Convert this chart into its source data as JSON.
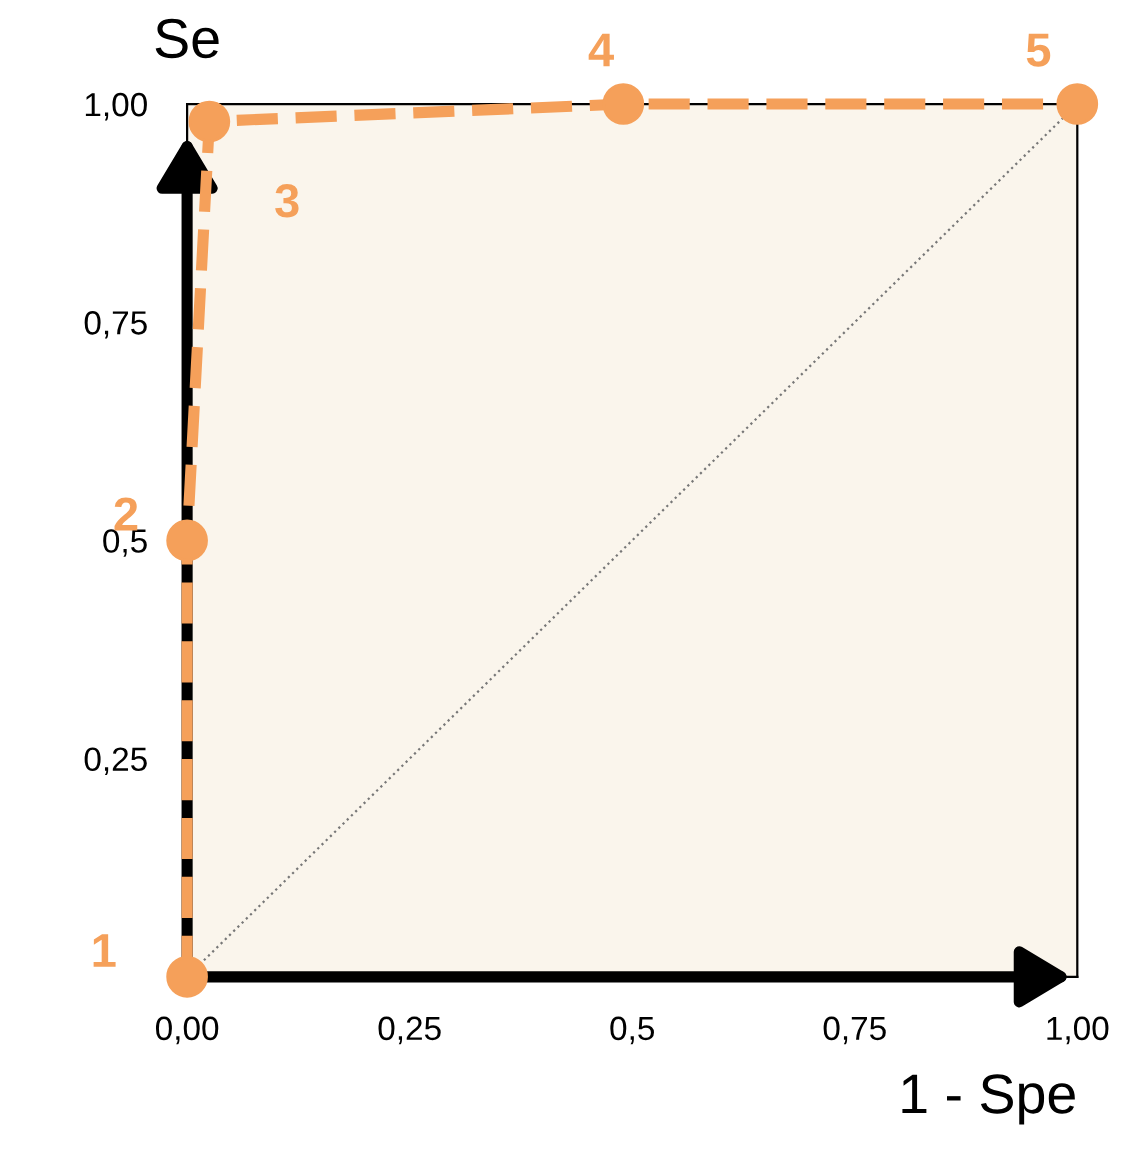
{
  "chart_data": {
    "type": "line",
    "xlabel": "1 - Spe",
    "ylabel": "Se",
    "xlim": [
      0,
      1
    ],
    "ylim": [
      0,
      1
    ],
    "xticks": [
      {
        "value": 0,
        "label": "0,00"
      },
      {
        "value": 0.25,
        "label": "0,25"
      },
      {
        "value": 0.5,
        "label": "0,5"
      },
      {
        "value": 0.75,
        "label": "0,75"
      },
      {
        "value": 1,
        "label": "1,00"
      }
    ],
    "yticks": [
      {
        "value": 0.25,
        "label": "0,25"
      },
      {
        "value": 0.5,
        "label": "0,5"
      },
      {
        "value": 0.75,
        "label": "0,75"
      },
      {
        "value": 1,
        "label": "1,00"
      }
    ],
    "grid": false,
    "legend": false,
    "series": [
      {
        "x": [
          0,
          1
        ],
        "values": [
          0,
          1
        ],
        "color": "#777777",
        "line_style": "dotted",
        "marker": "none"
      },
      {
        "x": [
          0,
          0,
          0.025,
          0.49,
          1
        ],
        "values": [
          0,
          0.5,
          0.98,
          1,
          1
        ],
        "color": "#f5a05a",
        "line_style": "dashed",
        "marker": "circle"
      }
    ],
    "annotations": [
      {
        "text": "1",
        "x": 0,
        "y": 0
      },
      {
        "text": "2",
        "x": 0,
        "y": 0.5
      },
      {
        "text": "3",
        "x": 0.025,
        "y": 0.98
      },
      {
        "text": "4",
        "x": 0.49,
        "y": 1
      },
      {
        "text": "5",
        "x": 1,
        "y": 1
      }
    ]
  }
}
